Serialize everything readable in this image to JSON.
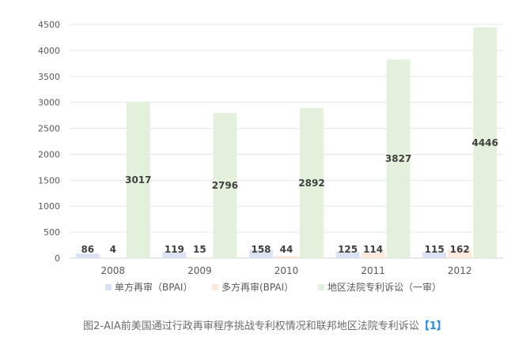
{
  "chart_data": {
    "type": "bar",
    "categories": [
      "2008",
      "2009",
      "2010",
      "2011",
      "2012"
    ],
    "series": [
      {
        "name": "单方再审（BPAI）",
        "color": "#dbe3f3",
        "values": [
          86,
          119,
          158,
          125,
          115
        ]
      },
      {
        "name": "多方再审(BPAI）",
        "color": "#fbe9dd",
        "values": [
          4,
          15,
          44,
          114,
          162
        ]
      },
      {
        "name": "地区法院专利诉讼（一审）",
        "color": "#e3f1dc",
        "values": [
          3017,
          2796,
          2892,
          3827,
          4446
        ]
      }
    ],
    "y_ticks": [
      0,
      500,
      1000,
      1500,
      2000,
      2500,
      3000,
      3500,
      4000,
      4500
    ],
    "ylim": [
      0,
      4500
    ],
    "grid": true,
    "legend_position": "bottom",
    "title": "",
    "xlabel": "",
    "ylabel": ""
  },
  "caption": {
    "text": "图2-AIA前美国通过行政再审程序挑战专利权情况和联邦地区法院专利诉讼",
    "ref": "【1】"
  }
}
